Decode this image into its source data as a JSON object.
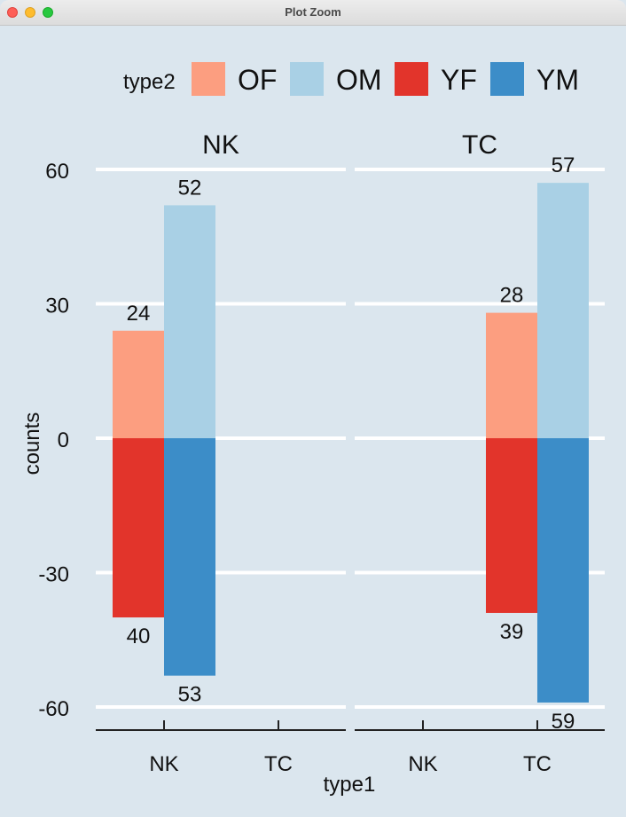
{
  "window": {
    "title": "Plot Zoom"
  },
  "chart_data": {
    "type": "bar",
    "legend": {
      "title": "type2",
      "position": "top",
      "entries": [
        {
          "name": "OF",
          "color": "#fc9e80"
        },
        {
          "name": "OM",
          "color": "#a9d0e5"
        },
        {
          "name": "YF",
          "color": "#e2342b"
        },
        {
          "name": "YM",
          "color": "#3c8dc8"
        }
      ]
    },
    "xlabel": "type1",
    "ylabel": "counts",
    "ylim": [
      -65,
      65
    ],
    "yticks": [
      60,
      30,
      0,
      -30,
      -60
    ],
    "ytick_labels": [
      "60",
      "30",
      "0",
      "-30",
      "-60"
    ],
    "categories": [
      "NK",
      "TC"
    ],
    "grid": true,
    "panels": [
      {
        "title": "NK",
        "bars": [
          {
            "series": "OF",
            "category": "NK",
            "value": 24,
            "label": "24"
          },
          {
            "series": "OM",
            "category": "NK",
            "value": 52,
            "label": "52"
          },
          {
            "series": "YF",
            "category": "NK",
            "value": -40,
            "label": "40"
          },
          {
            "series": "YM",
            "category": "NK",
            "value": -53,
            "label": "53"
          }
        ]
      },
      {
        "title": "TC",
        "bars": [
          {
            "series": "OF",
            "category": "TC",
            "value": 28,
            "label": "28"
          },
          {
            "series": "OM",
            "category": "TC",
            "value": 57,
            "label": "57"
          },
          {
            "series": "YF",
            "category": "TC",
            "value": -39,
            "label": "39"
          },
          {
            "series": "YM",
            "category": "TC",
            "value": -59,
            "label": "59"
          }
        ]
      }
    ]
  }
}
